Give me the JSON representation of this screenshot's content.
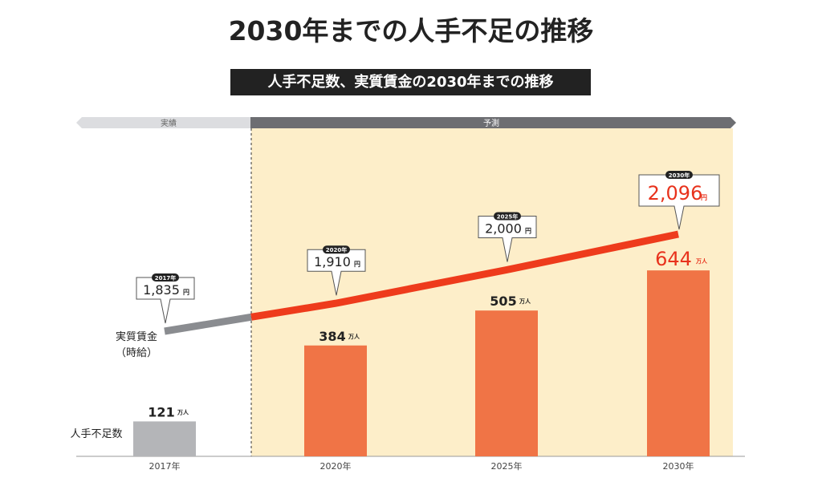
{
  "title": "2030年までの人手不足の推移",
  "chart_data": {
    "type": "bar",
    "title": "人手不足数、実質賃金の2030年までの推移",
    "categories": [
      "2017年",
      "2020年",
      "2025年",
      "2030年"
    ],
    "period_labels": {
      "actual": "実績",
      "forecast": "予測"
    },
    "series": [
      {
        "name": "人手不足数",
        "unit": "万人",
        "type": "bar",
        "values": [
          121,
          384,
          505,
          644
        ],
        "labels": [
          "121",
          "384",
          "505",
          "644"
        ]
      },
      {
        "name": "実質賃金",
        "name_sub": "（時給）",
        "unit": "円",
        "type": "line",
        "values": [
          1835,
          1910,
          2000,
          2096
        ],
        "labels": [
          "1,835",
          "1,910",
          "2,000",
          "2,096"
        ]
      }
    ],
    "colors": {
      "actual_bar": "#b4b5b8",
      "forecast_bar": "#f07446",
      "actual_line": "#8a8c90",
      "forecast_line": "#ee3b1c",
      "forecast_bg": "#fdeec9",
      "highlight_text": "#e8321c"
    }
  }
}
